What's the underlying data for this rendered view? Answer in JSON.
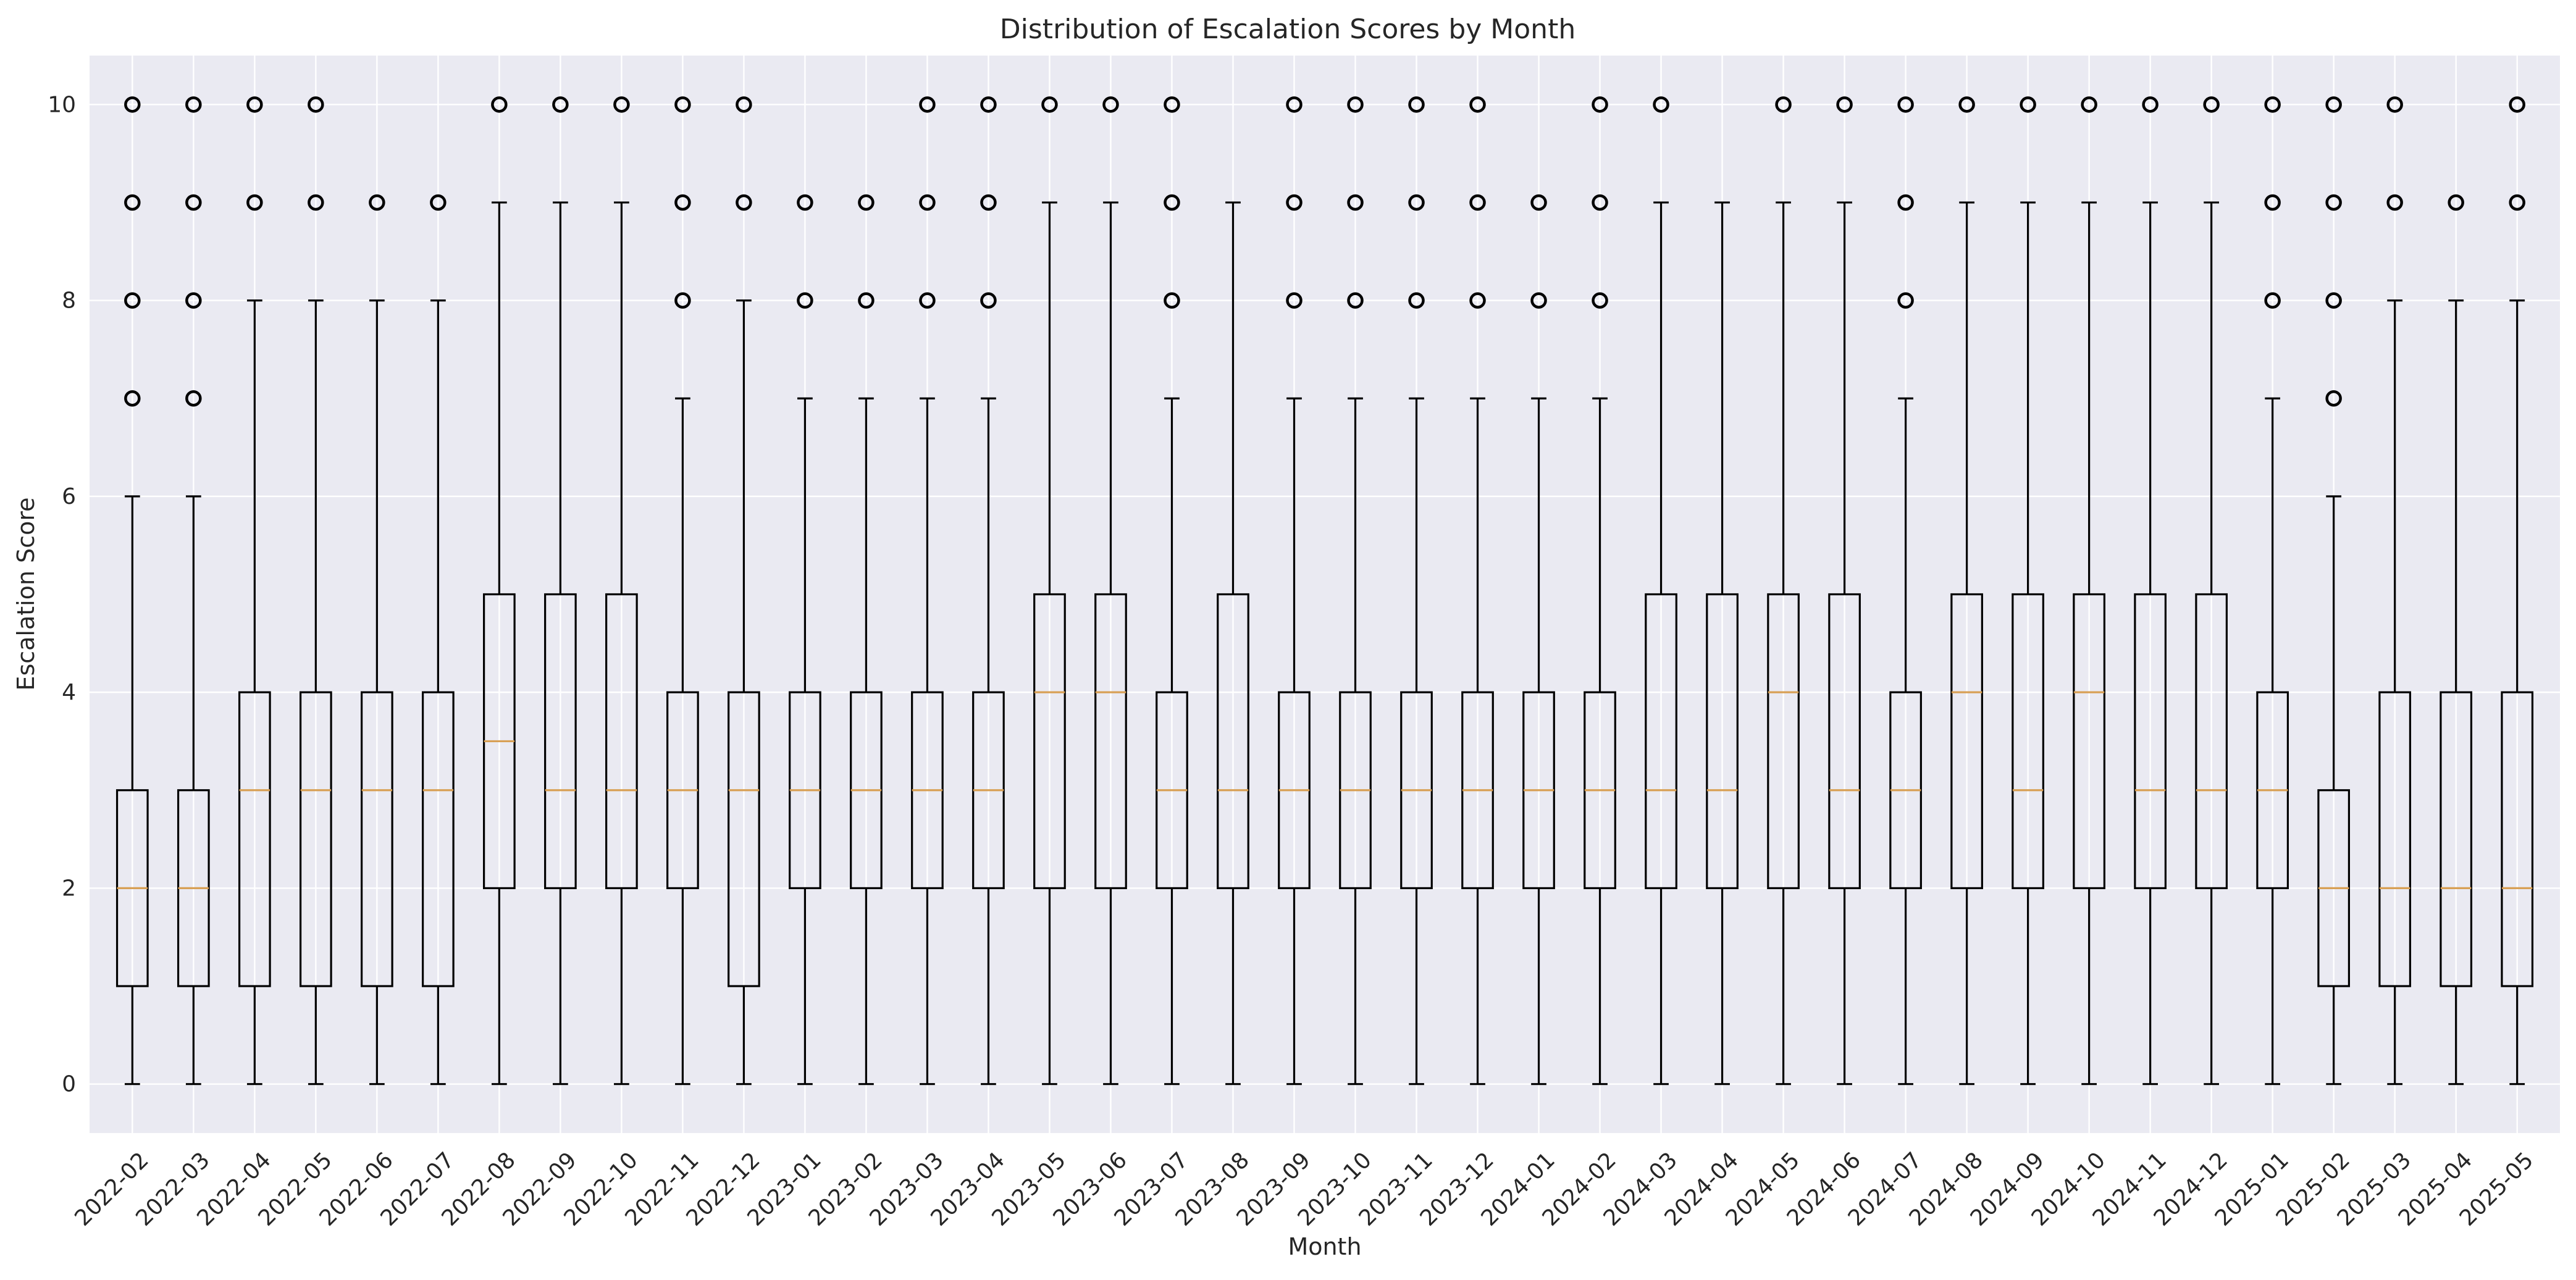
{
  "colors": {
    "plot_background": "#eaeaf2",
    "grid": "#ffffff",
    "box": "#000000",
    "median": "#d8a055"
  },
  "chart_data": {
    "type": "box",
    "title": "Distribution of Escalation Scores by Month",
    "xlabel": "Month",
    "ylabel": "Escalation Score",
    "ylim": [
      -0.5,
      10.5
    ],
    "yticks": [
      0,
      2,
      4,
      6,
      8,
      10
    ],
    "grid": true,
    "categories": [
      "2022-02",
      "2022-03",
      "2022-04",
      "2022-05",
      "2022-06",
      "2022-07",
      "2022-08",
      "2022-09",
      "2022-10",
      "2022-11",
      "2022-12",
      "2023-01",
      "2023-02",
      "2023-03",
      "2023-04",
      "2023-05",
      "2023-06",
      "2023-07",
      "2023-08",
      "2023-09",
      "2023-10",
      "2023-11",
      "2023-12",
      "2024-01",
      "2024-02",
      "2024-03",
      "2024-04",
      "2024-05",
      "2024-06",
      "2024-07",
      "2024-08",
      "2024-09",
      "2024-10",
      "2024-11",
      "2024-12",
      "2025-01",
      "2025-02",
      "2025-03",
      "2025-04",
      "2025-05"
    ],
    "boxes": [
      {
        "whisker_low": 0,
        "q1": 1,
        "median": 2,
        "q3": 3,
        "whisker_high": 6,
        "outliers": [
          7,
          8,
          9,
          10
        ]
      },
      {
        "whisker_low": 0,
        "q1": 1,
        "median": 2,
        "q3": 3,
        "whisker_high": 6,
        "outliers": [
          7,
          8,
          9,
          10
        ]
      },
      {
        "whisker_low": 0,
        "q1": 1,
        "median": 3,
        "q3": 4,
        "whisker_high": 8,
        "outliers": [
          9,
          10
        ]
      },
      {
        "whisker_low": 0,
        "q1": 1,
        "median": 3,
        "q3": 4,
        "whisker_high": 8,
        "outliers": [
          9,
          10
        ]
      },
      {
        "whisker_low": 0,
        "q1": 1,
        "median": 3,
        "q3": 4,
        "whisker_high": 8,
        "outliers": [
          9
        ]
      },
      {
        "whisker_low": 0,
        "q1": 1,
        "median": 3,
        "q3": 4,
        "whisker_high": 8,
        "outliers": [
          9
        ]
      },
      {
        "whisker_low": 0,
        "q1": 2,
        "median": 3.5,
        "q3": 5,
        "whisker_high": 9,
        "outliers": [
          10
        ]
      },
      {
        "whisker_low": 0,
        "q1": 2,
        "median": 3,
        "q3": 5,
        "whisker_high": 9,
        "outliers": [
          10
        ]
      },
      {
        "whisker_low": 0,
        "q1": 2,
        "median": 3,
        "q3": 5,
        "whisker_high": 9,
        "outliers": [
          10
        ]
      },
      {
        "whisker_low": 0,
        "q1": 2,
        "median": 3,
        "q3": 4,
        "whisker_high": 7,
        "outliers": [
          8,
          9,
          10
        ]
      },
      {
        "whisker_low": 0,
        "q1": 1,
        "median": 3,
        "q3": 4,
        "whisker_high": 8,
        "outliers": [
          9,
          10
        ]
      },
      {
        "whisker_low": 0,
        "q1": 2,
        "median": 3,
        "q3": 4,
        "whisker_high": 7,
        "outliers": [
          8,
          9
        ]
      },
      {
        "whisker_low": 0,
        "q1": 2,
        "median": 3,
        "q3": 4,
        "whisker_high": 7,
        "outliers": [
          8,
          9
        ]
      },
      {
        "whisker_low": 0,
        "q1": 2,
        "median": 3,
        "q3": 4,
        "whisker_high": 7,
        "outliers": [
          8,
          9,
          10
        ]
      },
      {
        "whisker_low": 0,
        "q1": 2,
        "median": 3,
        "q3": 4,
        "whisker_high": 7,
        "outliers": [
          8,
          9,
          10
        ]
      },
      {
        "whisker_low": 0,
        "q1": 2,
        "median": 4,
        "q3": 5,
        "whisker_high": 9,
        "outliers": [
          10
        ]
      },
      {
        "whisker_low": 0,
        "q1": 2,
        "median": 4,
        "q3": 5,
        "whisker_high": 9,
        "outliers": [
          10
        ]
      },
      {
        "whisker_low": 0,
        "q1": 2,
        "median": 3,
        "q3": 4,
        "whisker_high": 7,
        "outliers": [
          8,
          9,
          10
        ]
      },
      {
        "whisker_low": 0,
        "q1": 2,
        "median": 3,
        "q3": 5,
        "whisker_high": 9,
        "outliers": []
      },
      {
        "whisker_low": 0,
        "q1": 2,
        "median": 3,
        "q3": 4,
        "whisker_high": 7,
        "outliers": [
          8,
          9,
          10
        ]
      },
      {
        "whisker_low": 0,
        "q1": 2,
        "median": 3,
        "q3": 4,
        "whisker_high": 7,
        "outliers": [
          8,
          9,
          10
        ]
      },
      {
        "whisker_low": 0,
        "q1": 2,
        "median": 3,
        "q3": 4,
        "whisker_high": 7,
        "outliers": [
          8,
          9,
          10
        ]
      },
      {
        "whisker_low": 0,
        "q1": 2,
        "median": 3,
        "q3": 4,
        "whisker_high": 7,
        "outliers": [
          8,
          9,
          10
        ]
      },
      {
        "whisker_low": 0,
        "q1": 2,
        "median": 3,
        "q3": 4,
        "whisker_high": 7,
        "outliers": [
          8,
          9
        ]
      },
      {
        "whisker_low": 0,
        "q1": 2,
        "median": 3,
        "q3": 4,
        "whisker_high": 7,
        "outliers": [
          8,
          9,
          10
        ]
      },
      {
        "whisker_low": 0,
        "q1": 2,
        "median": 3,
        "q3": 5,
        "whisker_high": 9,
        "outliers": [
          10
        ]
      },
      {
        "whisker_low": 0,
        "q1": 2,
        "median": 3,
        "q3": 5,
        "whisker_high": 9,
        "outliers": []
      },
      {
        "whisker_low": 0,
        "q1": 2,
        "median": 4,
        "q3": 5,
        "whisker_high": 9,
        "outliers": [
          10
        ]
      },
      {
        "whisker_low": 0,
        "q1": 2,
        "median": 3,
        "q3": 5,
        "whisker_high": 9,
        "outliers": [
          10
        ]
      },
      {
        "whisker_low": 0,
        "q1": 2,
        "median": 3,
        "q3": 4,
        "whisker_high": 7,
        "outliers": [
          8,
          9,
          10
        ]
      },
      {
        "whisker_low": 0,
        "q1": 2,
        "median": 4,
        "q3": 5,
        "whisker_high": 9,
        "outliers": [
          10
        ]
      },
      {
        "whisker_low": 0,
        "q1": 2,
        "median": 3,
        "q3": 5,
        "whisker_high": 9,
        "outliers": [
          10
        ]
      },
      {
        "whisker_low": 0,
        "q1": 2,
        "median": 4,
        "q3": 5,
        "whisker_high": 9,
        "outliers": [
          10
        ]
      },
      {
        "whisker_low": 0,
        "q1": 2,
        "median": 3,
        "q3": 5,
        "whisker_high": 9,
        "outliers": [
          10
        ]
      },
      {
        "whisker_low": 0,
        "q1": 2,
        "median": 3,
        "q3": 5,
        "whisker_high": 9,
        "outliers": [
          10
        ]
      },
      {
        "whisker_low": 0,
        "q1": 2,
        "median": 3,
        "q3": 4,
        "whisker_high": 7,
        "outliers": [
          8,
          9,
          10
        ]
      },
      {
        "whisker_low": 0,
        "q1": 1,
        "median": 2,
        "q3": 3,
        "whisker_high": 6,
        "outliers": [
          7,
          8,
          9,
          10
        ]
      },
      {
        "whisker_low": 0,
        "q1": 1,
        "median": 2,
        "q3": 4,
        "whisker_high": 8,
        "outliers": [
          9,
          10
        ]
      },
      {
        "whisker_low": 0,
        "q1": 1,
        "median": 2,
        "q3": 4,
        "whisker_high": 8,
        "outliers": [
          9
        ]
      },
      {
        "whisker_low": 0,
        "q1": 1,
        "median": 2,
        "q3": 4,
        "whisker_high": 8,
        "outliers": [
          9,
          10
        ]
      }
    ]
  }
}
